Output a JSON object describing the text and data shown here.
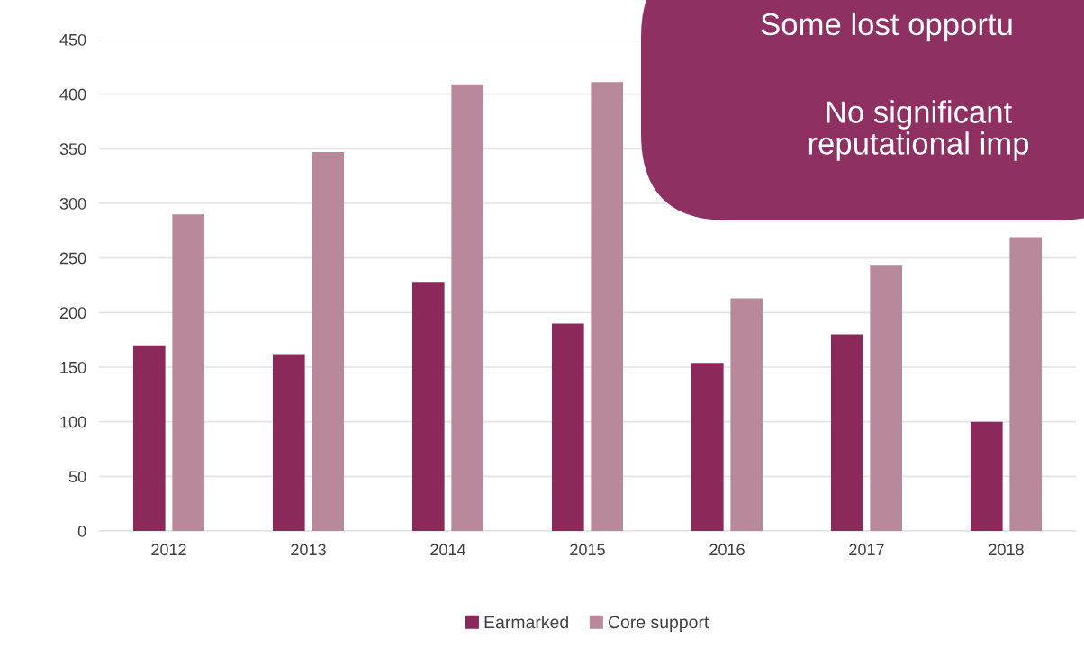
{
  "chart_data": {
    "type": "bar",
    "categories": [
      "2012",
      "2013",
      "2014",
      "2015",
      "2016",
      "2017",
      "2018"
    ],
    "series": [
      {
        "name": "Earmarked",
        "color": "#8b2a5a",
        "values": [
          170,
          162,
          228,
          190,
          154,
          180,
          100
        ]
      },
      {
        "name": "Core support",
        "color": "#b8899b",
        "values": [
          290,
          347,
          409,
          411,
          213,
          243,
          269
        ]
      }
    ],
    "ylim": [
      0,
      450
    ],
    "yticks": [
      0,
      50,
      100,
      150,
      200,
      250,
      300,
      350,
      400,
      450
    ],
    "grid": "y",
    "legend": "bottom",
    "annotations": [
      "Some lost opportu",
      "No significant\nreputational imp"
    ]
  }
}
